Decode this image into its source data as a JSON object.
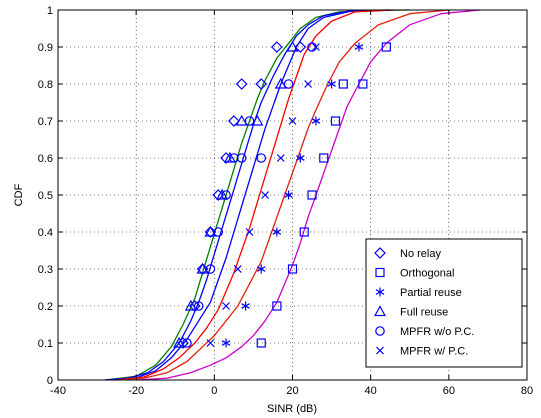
{
  "chart_data": {
    "type": "line",
    "title": "",
    "xlabel": "SINR (dB)",
    "ylabel": "CDF",
    "xlim": [
      -40,
      80
    ],
    "ylim": [
      0,
      1
    ],
    "xticks": [
      -40,
      -20,
      0,
      20,
      40,
      60,
      80
    ],
    "yticks": [
      0,
      0.1,
      0.2,
      0.3,
      0.4,
      0.5,
      0.6,
      0.7,
      0.8,
      0.9,
      1
    ],
    "grid": true,
    "legend_position": "bottom-right",
    "legend": [
      {
        "label": "No relay",
        "marker": "diamond"
      },
      {
        "label": "Orthogonal",
        "marker": "square"
      },
      {
        "label": "Partial reuse",
        "marker": "asterisk"
      },
      {
        "label": "Full reuse",
        "marker": "triangle"
      },
      {
        "label": "MPFR w/o P.C.",
        "marker": "circle"
      },
      {
        "label": "MPFR w/ P.C.",
        "marker": "x"
      }
    ],
    "marker_color": "#0000ff",
    "curves": [
      {
        "color": "#008000",
        "x": [
          -28,
          -20,
          -15,
          -11,
          -8,
          -5,
          -3,
          -1,
          1,
          3,
          5,
          7,
          9,
          11,
          13,
          16,
          19,
          22,
          26,
          32,
          40,
          50
        ],
        "y": [
          0,
          0.01,
          0.04,
          0.09,
          0.15,
          0.22,
          0.29,
          0.36,
          0.43,
          0.5,
          0.57,
          0.64,
          0.7,
          0.76,
          0.81,
          0.87,
          0.91,
          0.95,
          0.98,
          0.995,
          0.999,
          1
        ]
      },
      {
        "color": "#0000ff",
        "x": [
          -28,
          -22,
          -17,
          -13,
          -9,
          -6,
          -4,
          -2,
          0,
          2,
          4,
          6,
          8,
          10,
          12,
          15,
          18,
          21,
          24,
          28,
          35,
          45
        ],
        "y": [
          0,
          0.005,
          0.02,
          0.05,
          0.1,
          0.16,
          0.21,
          0.27,
          0.34,
          0.41,
          0.48,
          0.55,
          0.62,
          0.69,
          0.75,
          0.82,
          0.88,
          0.93,
          0.96,
          0.985,
          0.998,
          1
        ]
      },
      {
        "color": "#0000ff",
        "x": [
          -26,
          -20,
          -15,
          -11,
          -7,
          -4,
          -1,
          1,
          3,
          5,
          7,
          9,
          11,
          13,
          15,
          17,
          19,
          21,
          24,
          28,
          35,
          45
        ],
        "y": [
          0,
          0.006,
          0.025,
          0.06,
          0.11,
          0.16,
          0.21,
          0.27,
          0.33,
          0.4,
          0.47,
          0.54,
          0.61,
          0.68,
          0.74,
          0.8,
          0.85,
          0.9,
          0.95,
          0.98,
          0.997,
          1
        ]
      },
      {
        "color": "#ff0000",
        "x": [
          -25,
          -18,
          -13,
          -9,
          -5,
          -2,
          1,
          3,
          5,
          7,
          9,
          11,
          13,
          15,
          17,
          19,
          21,
          23,
          26,
          30,
          36,
          46
        ],
        "y": [
          0,
          0.008,
          0.03,
          0.06,
          0.1,
          0.14,
          0.19,
          0.24,
          0.29,
          0.35,
          0.41,
          0.48,
          0.55,
          0.62,
          0.69,
          0.76,
          0.82,
          0.88,
          0.93,
          0.97,
          0.995,
          1
        ]
      },
      {
        "color": "#e02010",
        "x": [
          -25,
          -18,
          -12,
          -7,
          -3,
          0,
          3,
          6,
          9,
          12,
          14,
          16,
          18,
          20,
          22,
          24,
          26,
          29,
          32,
          36,
          42,
          50,
          60
        ],
        "y": [
          0,
          0.005,
          0.02,
          0.05,
          0.09,
          0.12,
          0.16,
          0.2,
          0.26,
          0.32,
          0.38,
          0.44,
          0.5,
          0.56,
          0.62,
          0.68,
          0.73,
          0.8,
          0.86,
          0.91,
          0.96,
          0.99,
          1
        ]
      },
      {
        "color": "#cc00cc",
        "x": [
          -20,
          -12,
          -6,
          -1,
          3,
          7,
          10,
          13,
          16,
          18,
          20,
          22,
          24,
          26,
          28,
          30,
          32,
          34,
          37,
          40,
          44,
          50,
          58,
          68
        ],
        "y": [
          0,
          0.005,
          0.02,
          0.04,
          0.06,
          0.09,
          0.12,
          0.16,
          0.21,
          0.26,
          0.31,
          0.37,
          0.44,
          0.5,
          0.56,
          0.62,
          0.68,
          0.74,
          0.8,
          0.86,
          0.91,
          0.96,
          0.99,
          1
        ]
      }
    ],
    "markers": [
      {
        "marker": "diamond",
        "x": [
          -8,
          -5,
          -3,
          -1,
          1,
          3,
          5,
          7,
          12,
          16,
          22
        ],
        "y": [
          0.1,
          0.2,
          0.3,
          0.4,
          0.5,
          0.6,
          0.7,
          0.8,
          0.8,
          0.9,
          0.9
        ]
      },
      {
        "marker": "square",
        "x": [
          12,
          16,
          20,
          23,
          25,
          28,
          31,
          33,
          38,
          44
        ],
        "y": [
          0.1,
          0.2,
          0.3,
          0.4,
          0.5,
          0.6,
          0.7,
          0.8,
          0.8,
          0.9
        ]
      },
      {
        "marker": "asterisk",
        "x": [
          3,
          8,
          12,
          16,
          19,
          22,
          26,
          30,
          37
        ],
        "y": [
          0.1,
          0.2,
          0.3,
          0.4,
          0.5,
          0.6,
          0.7,
          0.8,
          0.9
        ]
      },
      {
        "marker": "triangle",
        "x": [
          -9,
          -6,
          -3,
          -1,
          2,
          4,
          7,
          11,
          17,
          20
        ],
        "y": [
          0.1,
          0.2,
          0.3,
          0.4,
          0.5,
          0.6,
          0.7,
          0.7,
          0.8,
          0.9
        ]
      },
      {
        "marker": "circle",
        "x": [
          -7,
          -4,
          -1,
          1,
          3,
          5,
          7,
          9,
          12,
          19,
          25
        ],
        "y": [
          0.1,
          0.2,
          0.3,
          0.4,
          0.5,
          0.6,
          0.6,
          0.7,
          0.6,
          0.8,
          0.9
        ]
      },
      {
        "marker": "x",
        "x": [
          -1,
          3,
          6,
          9,
          13,
          17,
          20,
          24,
          26
        ],
        "y": [
          0.1,
          0.2,
          0.3,
          0.4,
          0.5,
          0.6,
          0.7,
          0.8,
          0.9
        ]
      }
    ]
  }
}
